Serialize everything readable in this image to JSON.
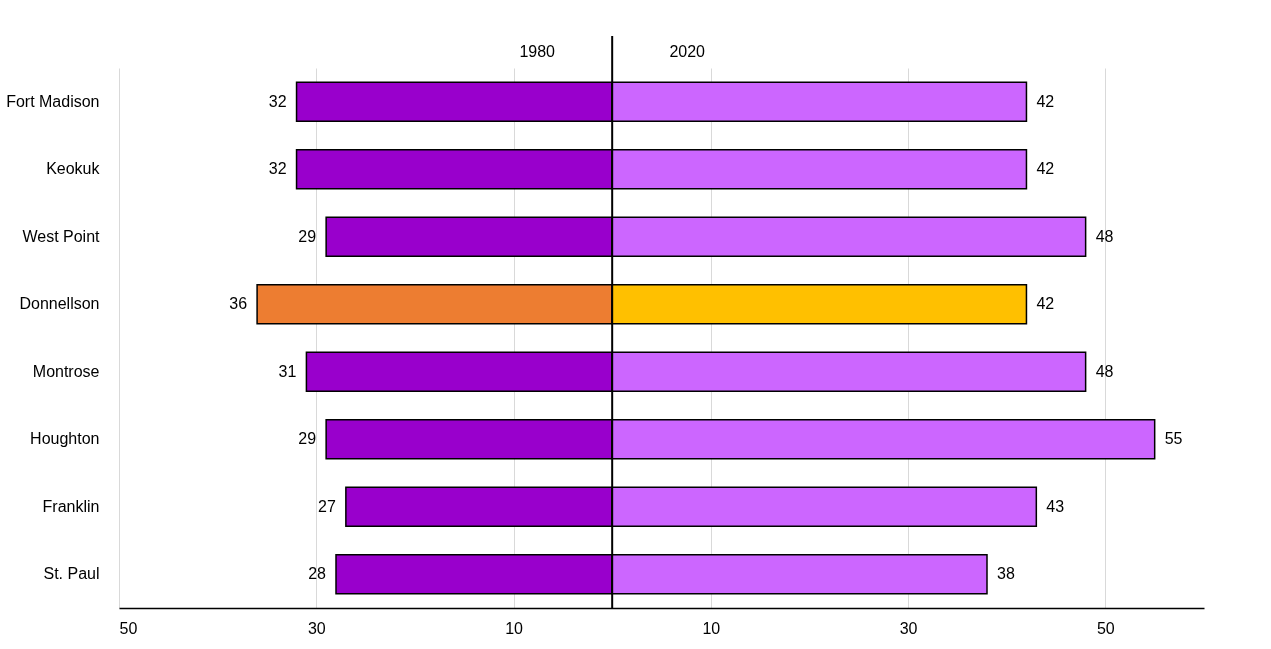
{
  "chart_data": {
    "type": "bar",
    "orientation": "horizontal",
    "categories": [
      "Fort Madison",
      "Keokuk",
      "West Point",
      "Donnellson",
      "Montrose",
      "Houghton",
      "Franklin",
      "St. Paul"
    ],
    "series": [
      {
        "name": "1980",
        "color": "#9900cc",
        "colors": [
          null,
          null,
          null,
          "#ed7d31",
          null,
          null,
          null,
          null
        ],
        "values": [
          32,
          32,
          29,
          36,
          31,
          29,
          27,
          28
        ],
        "base": [
          -32,
          -32,
          -29,
          -36,
          -31,
          -29,
          -27,
          -28
        ]
      },
      {
        "name": "2020",
        "color": "#cc66ff",
        "colors": [
          null,
          null,
          null,
          "#ffc000",
          null,
          null,
          null,
          null
        ],
        "values": [
          42,
          42,
          48,
          42,
          48,
          55,
          43,
          38
        ]
      }
    ],
    "data_labels": true,
    "xlim": [
      -50,
      60
    ],
    "xticks": [
      {
        "value": -50,
        "label": "50"
      },
      {
        "value": -30,
        "label": "30"
      },
      {
        "value": -10,
        "label": "10"
      },
      10,
      30,
      50
    ],
    "ref_lines": [
      {
        "axis": "x",
        "value": 0,
        "color": "#000000"
      }
    ],
    "grid": "x"
  }
}
